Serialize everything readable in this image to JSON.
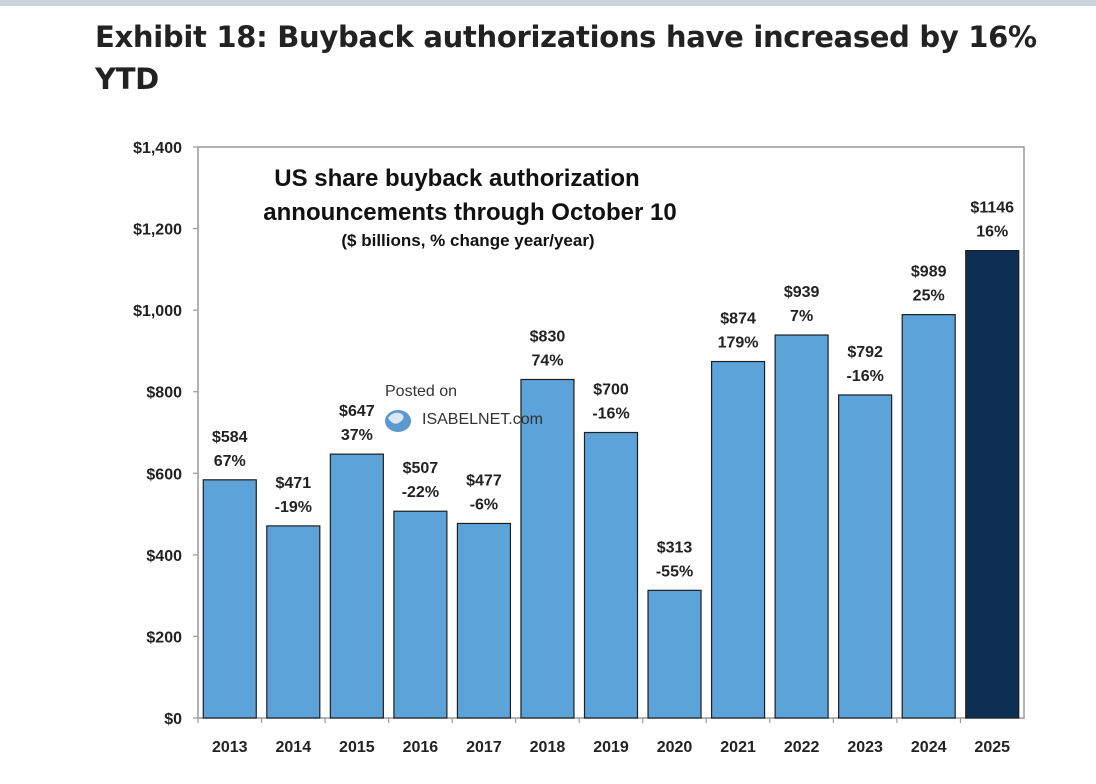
{
  "exhibit_title": "Exhibit 18: Buyback authorizations have increased by 16% YTD",
  "chart_data": {
    "type": "bar",
    "title": "US share buyback authorization",
    "title_line2": "announcements through October 10",
    "subtitle": "($ billions, % change year/year)",
    "categories": [
      "2013",
      "2014",
      "2015",
      "2016",
      "2017",
      "2018",
      "2019",
      "2020",
      "2021",
      "2022",
      "2023",
      "2024",
      "2025"
    ],
    "values": [
      584,
      471,
      647,
      507,
      477,
      830,
      700,
      313,
      874,
      939,
      792,
      989,
      1146
    ],
    "value_labels": [
      "$584",
      "$471",
      "$647",
      "$507",
      "$477",
      "$830",
      "$700",
      "$313",
      "$874",
      "$939",
      "$792",
      "$989",
      "$1146"
    ],
    "pct_labels": [
      "67%",
      "-19%",
      "37%",
      "-22%",
      "-6%",
      "74%",
      "-16%",
      "-55%",
      "179%",
      "7%",
      "-16%",
      "25%",
      "16%"
    ],
    "highlight_index": 12,
    "ylim": [
      0,
      1400
    ],
    "yticks": [
      0,
      200,
      400,
      600,
      800,
      1000,
      1200,
      1400
    ],
    "ytick_labels": [
      "$0",
      "$200",
      "$400",
      "$600",
      "$800",
      "$1,000",
      "$1,200",
      "$1,400"
    ],
    "xlabel": "",
    "ylabel": "",
    "grid": false,
    "colors": {
      "bar": "#5ba3d9",
      "highlight": "#0e2f54",
      "bar_edge": "#1f1f1f",
      "frame": "#9a9a9a"
    },
    "watermark": {
      "line1": "Posted on",
      "line2": "ISABELNET.com"
    }
  }
}
